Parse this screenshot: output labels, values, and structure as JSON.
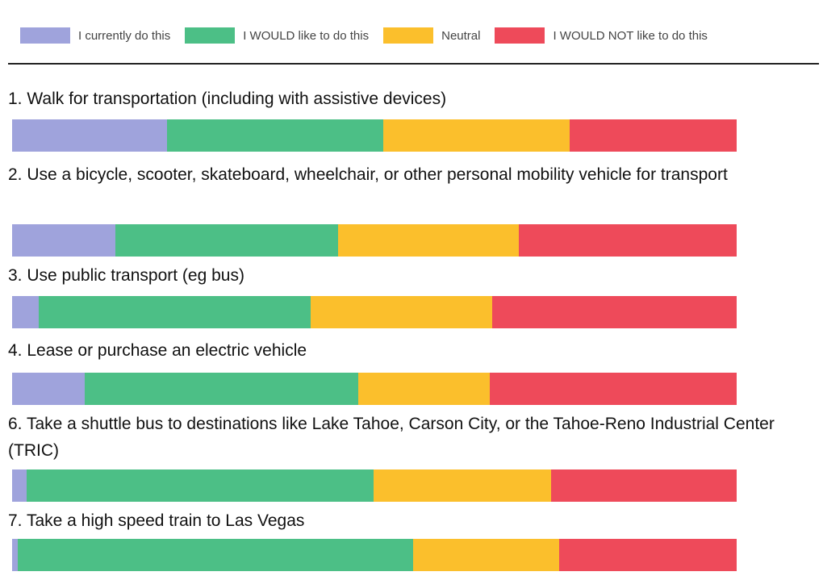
{
  "chart_data": {
    "type": "stacked-bar",
    "categories": [
      "1. Walk for transportation (including with assistive devices)",
      "2. Use a bicycle, scooter, skateboard, wheelchair, or other personal mobility vehicle for transport",
      "3. Use public transport (eg bus)",
      "4. Lease or purchase an electric vehicle",
      "6. Take a shuttle bus to destinations like Lake Tahoe, Carson City, or the Tahoe-Reno Industrial Center (TRIC)",
      "7. Take a high speed train to Las Vegas"
    ],
    "series": [
      {
        "name": "I currently do this",
        "color": "#9fa3dc",
        "values": [
          21.4,
          14.3,
          3.7,
          10.0,
          2.0,
          0.8
        ]
      },
      {
        "name": "I WOULD like to do this",
        "color": "#4cbf86",
        "values": [
          29.8,
          30.7,
          37.5,
          37.8,
          47.9,
          54.6
        ]
      },
      {
        "name": "Neutral",
        "color": "#fbbf2c",
        "values": [
          25.7,
          24.9,
          25.1,
          18.1,
          24.5,
          20.1
        ]
      },
      {
        "name": "I WOULD NOT like to do this",
        "color": "#ee4a5a",
        "values": [
          23.1,
          30.1,
          33.7,
          34.1,
          25.6,
          24.5
        ]
      }
    ],
    "xlim": [
      0,
      100
    ],
    "legend": "top"
  }
}
